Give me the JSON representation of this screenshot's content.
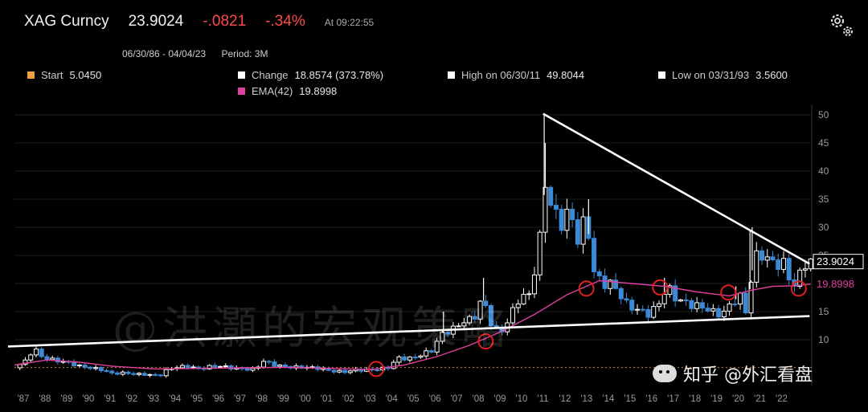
{
  "header": {
    "ticker": "XAG Curncy",
    "last": "23.9024",
    "change": "-.0821",
    "change_pct": "-.34%",
    "time": "At 09:22:55",
    "range": "06/30/86 - 04/04/23",
    "period": "Period: 3M"
  },
  "legend": {
    "start": {
      "label": "Start",
      "value": "5.0450",
      "color": "#f0a040"
    },
    "change": {
      "label": "Change",
      "value": "18.8574 (373.78%)",
      "color": "#ffffff"
    },
    "high": {
      "label": "High on 06/30/11",
      "value": "49.8044",
      "color": "#ffffff"
    },
    "low": {
      "label": "Low on 03/31/93",
      "value": "3.5600",
      "color": "#ffffff"
    },
    "ema": {
      "label": "EMA(42)",
      "value": "19.8998",
      "color": "#e040a0"
    }
  },
  "watermark": "@洪灝的宏观策略",
  "watermark2": "知乎 @外汇看盘",
  "colors": {
    "up": "#ffffff",
    "down": "#3b8ad8",
    "ema": "#e040a0",
    "circle": "#e02020",
    "trend": "#ffffff"
  },
  "chart_data": {
    "type": "candlestick",
    "ylim": [
      3,
      52
    ],
    "yticks": [
      10,
      15,
      20,
      25,
      30,
      35,
      40,
      45,
      50
    ],
    "x_range": [
      1986.5,
      2023.3
    ],
    "xtick_labels": [
      "'87",
      "'88",
      "'89",
      "'90",
      "'91",
      "'92",
      "'93",
      "'94",
      "'95",
      "'96",
      "'97",
      "'98",
      "'99",
      "'00",
      "'01",
      "'02",
      "'03",
      "'04",
      "'05",
      "'06",
      "'07",
      "'08",
      "'09",
      "'10",
      "'11",
      "'12",
      "'13",
      "'14",
      "'15",
      "'16",
      "'17",
      "'18",
      "'19",
      "'20",
      "'21",
      "'22"
    ],
    "last_price_label": "23.9024",
    "ema_label": "19.8998",
    "price_path": [
      [
        1986.5,
        5.0
      ],
      [
        1987.0,
        6.2
      ],
      [
        1987.4,
        8.5
      ],
      [
        1987.8,
        6.8
      ],
      [
        1988.3,
        6.4
      ],
      [
        1988.9,
        6.0
      ],
      [
        1989.5,
        5.3
      ],
      [
        1990.0,
        5.0
      ],
      [
        1990.6,
        4.6
      ],
      [
        1991.0,
        4.0
      ],
      [
        1991.6,
        4.1
      ],
      [
        1992.0,
        3.9
      ],
      [
        1992.6,
        3.8
      ],
      [
        1993.2,
        3.6
      ],
      [
        1993.6,
        4.8
      ],
      [
        1994.0,
        5.1
      ],
      [
        1994.5,
        5.3
      ],
      [
        1995.0,
        4.8
      ],
      [
        1995.5,
        5.2
      ],
      [
        1996.0,
        5.3
      ],
      [
        1996.5,
        5.0
      ],
      [
        1997.0,
        4.8
      ],
      [
        1997.6,
        4.7
      ],
      [
        1998.0,
        6.2
      ],
      [
        1998.5,
        5.5
      ],
      [
        1999.0,
        5.2
      ],
      [
        1999.5,
        5.1
      ],
      [
        2000.0,
        5.1
      ],
      [
        2000.6,
        4.9
      ],
      [
        2001.2,
        4.4
      ],
      [
        2001.8,
        4.3
      ],
      [
        2002.2,
        4.6
      ],
      [
        2002.8,
        4.6
      ],
      [
        2003.2,
        4.7
      ],
      [
        2003.8,
        5.1
      ],
      [
        2004.2,
        6.8
      ],
      [
        2004.7,
        6.6
      ],
      [
        2005.2,
        7.2
      ],
      [
        2005.8,
        8.2
      ],
      [
        2006.2,
        11.0
      ],
      [
        2006.7,
        11.8
      ],
      [
        2007.2,
        13.2
      ],
      [
        2007.7,
        13.8
      ],
      [
        2008.1,
        17.5
      ],
      [
        2008.5,
        13.0
      ],
      [
        2008.9,
        11.0
      ],
      [
        2009.3,
        13.5
      ],
      [
        2009.8,
        17.5
      ],
      [
        2010.3,
        18.0
      ],
      [
        2010.8,
        29.0
      ],
      [
        2011.0,
        38.0
      ],
      [
        2011.3,
        33.5
      ],
      [
        2011.7,
        30.5
      ],
      [
        2012.1,
        33.0
      ],
      [
        2012.5,
        28.0
      ],
      [
        2012.9,
        32.0
      ],
      [
        2013.2,
        22.5
      ],
      [
        2013.6,
        20.0
      ],
      [
        2014.0,
        20.0
      ],
      [
        2014.4,
        18.5
      ],
      [
        2014.8,
        16.0
      ],
      [
        2015.2,
        15.5
      ],
      [
        2015.7,
        14.5
      ],
      [
        2016.2,
        16.0
      ],
      [
        2016.6,
        19.5
      ],
      [
        2017.0,
        17.5
      ],
      [
        2017.5,
        16.5
      ],
      [
        2018.0,
        16.0
      ],
      [
        2018.5,
        15.5
      ],
      [
        2018.9,
        14.5
      ],
      [
        2019.3,
        15.0
      ],
      [
        2019.7,
        17.0
      ],
      [
        2020.1,
        17.8
      ],
      [
        2020.3,
        14.0
      ],
      [
        2020.6,
        24.0
      ],
      [
        2020.9,
        25.5
      ],
      [
        2021.2,
        24.5
      ],
      [
        2021.6,
        23.5
      ],
      [
        2022.0,
        23.5
      ],
      [
        2022.3,
        20.5
      ],
      [
        2022.6,
        19.5
      ],
      [
        2022.9,
        23.5
      ],
      [
        2023.25,
        23.9
      ]
    ],
    "ema_path": [
      [
        1986.5,
        5.5
      ],
      [
        1988.0,
        6.4
      ],
      [
        1989.5,
        6.0
      ],
      [
        1991.0,
        5.3
      ],
      [
        1993.0,
        4.8
      ],
      [
        1995.0,
        4.9
      ],
      [
        1997.0,
        5.0
      ],
      [
        1999.0,
        5.1
      ],
      [
        2001.0,
        4.9
      ],
      [
        2003.0,
        4.7
      ],
      [
        2004.5,
        5.5
      ],
      [
        2006.0,
        7.0
      ],
      [
        2007.5,
        9.0
      ],
      [
        2009.0,
        11.5
      ],
      [
        2010.5,
        14.5
      ],
      [
        2012.0,
        18.0
      ],
      [
        2013.5,
        20.5
      ],
      [
        2015.0,
        20.0
      ],
      [
        2016.5,
        19.5
      ],
      [
        2018.0,
        18.5
      ],
      [
        2019.5,
        17.8
      ],
      [
        2020.5,
        18.8
      ],
      [
        2021.5,
        19.5
      ],
      [
        2022.5,
        19.6
      ],
      [
        2023.25,
        19.9
      ]
    ],
    "wicks": [
      [
        2010.95,
        50.0
      ],
      [
        2011.0,
        45.0
      ],
      [
        2013.0,
        35.0
      ],
      [
        2020.45,
        29.5
      ],
      [
        2020.55,
        30.0
      ],
      [
        2008.15,
        21.0
      ],
      [
        2006.3,
        15.0
      ],
      [
        2016.5,
        21.0
      ],
      [
        2019.8,
        19.5
      ]
    ],
    "circles": [
      [
        2003.2,
        4.8
      ],
      [
        2008.25,
        9.7
      ],
      [
        2012.9,
        19.1
      ],
      [
        2016.3,
        19.3
      ],
      [
        2019.45,
        18.4
      ],
      [
        2022.7,
        19.1
      ]
    ],
    "trendlines": [
      {
        "from": [
          1986.2,
          8.8
        ],
        "to": [
          2023.2,
          14.2
        ]
      },
      {
        "from": [
          2010.9,
          50.2
        ],
        "to": [
          2023.2,
          23.5
        ]
      }
    ]
  }
}
